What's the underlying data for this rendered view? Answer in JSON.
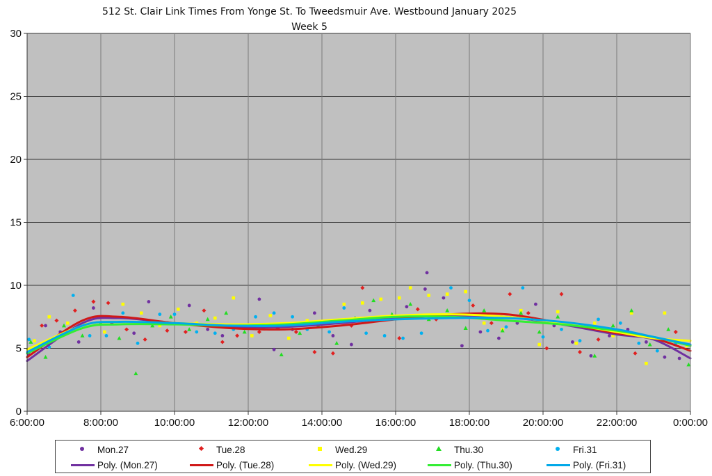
{
  "chart_data": {
    "type": "scatter",
    "title": "512 St. Clair Link Times From Yonge St. To Tweedsmuir Ave. Westbound January 2025",
    "subtitle": "Week 5",
    "ylim": [
      0,
      30
    ],
    "yticks": [
      "0",
      "5",
      "10",
      "15",
      "20",
      "25",
      "30"
    ],
    "xlim": [
      6,
      24
    ],
    "xticks": [
      "6:00:00",
      "8:00:00",
      "10:00:00",
      "12:00:00",
      "14:00:00",
      "16:00:00",
      "18:00:00",
      "20:00:00",
      "22:00:00",
      "0:00:00"
    ],
    "grid": true,
    "plot_background": "#c0c0c0",
    "legend_position": "bottom",
    "series": [
      {
        "name": "Mon.27",
        "marker": "circle",
        "color": "#7030a0",
        "x": [
          6.05,
          6.5,
          6.9,
          7.4,
          7.8,
          8.3,
          8.9,
          9.3,
          9.8,
          10.4,
          10.9,
          11.3,
          11.9,
          12.3,
          12.7,
          13.2,
          13.8,
          14.3,
          14.8,
          15.3,
          15.8,
          16.3,
          16.8,
          16.85,
          17.3,
          17.8,
          18.3,
          18.8,
          19.3,
          19.8,
          20.3,
          20.8,
          21.3,
          21.8,
          22.3,
          22.8,
          23.3,
          23.7
        ],
        "y": [
          4.5,
          6.8,
          6.3,
          5.5,
          8.2,
          7.0,
          6.2,
          8.7,
          7.0,
          8.4,
          6.5,
          6.0,
          6.8,
          8.9,
          4.9,
          6.5,
          7.8,
          6.0,
          5.3,
          8.0,
          7.4,
          8.3,
          9.7,
          11.0,
          9.0,
          5.2,
          6.3,
          5.8,
          7.0,
          8.5,
          6.8,
          5.5,
          4.4,
          6.0,
          6.5,
          5.5,
          4.3,
          4.2
        ],
        "trend": "Poly. (Mon.27)",
        "trend_color": "#7030a0",
        "trend_y": [
          4.0,
          7.0,
          7.4,
          7.0,
          6.7,
          6.7,
          7.0,
          7.4,
          7.6,
          7.5,
          6.9,
          6.1,
          5.7,
          4.2
        ]
      },
      {
        "name": "Tue.28",
        "marker": "diamond",
        "color": "#e02020",
        "x": [
          6.4,
          6.8,
          7.3,
          7.8,
          8.2,
          8.7,
          9.2,
          9.8,
          10.3,
          10.8,
          11.3,
          11.7,
          12.3,
          12.8,
          13.3,
          13.8,
          14.3,
          14.8,
          15.1,
          15.6,
          16.1,
          16.6,
          17.1,
          17.6,
          18.1,
          18.6,
          19.1,
          19.6,
          20.1,
          20.5,
          21.0,
          21.5,
          22.0,
          22.5,
          23.0,
          23.6
        ],
        "y": [
          6.8,
          7.2,
          8.0,
          8.7,
          8.6,
          6.5,
          5.7,
          6.4,
          6.3,
          8.0,
          5.5,
          6.0,
          6.3,
          6.6,
          6.3,
          4.7,
          4.6,
          6.8,
          9.8,
          7.4,
          5.8,
          8.1,
          7.3,
          7.5,
          8.4,
          7.0,
          9.3,
          7.8,
          5.0,
          9.3,
          4.7,
          5.7,
          6.2,
          4.6,
          5.8,
          6.3
        ],
        "trend": "Poly. (Tue.28)",
        "trend_color": "#d01818",
        "trend_y": [
          4.3,
          7.2,
          7.5,
          7.0,
          6.6,
          6.5,
          6.8,
          7.3,
          7.7,
          7.7,
          7.0,
          6.2,
          5.8,
          4.8
        ]
      },
      {
        "name": "Wed.29",
        "marker": "square",
        "color": "#ffff00",
        "x": [
          6.2,
          6.6,
          7.1,
          7.6,
          8.1,
          8.6,
          9.1,
          9.6,
          10.1,
          10.6,
          11.1,
          11.6,
          12.1,
          12.6,
          13.1,
          13.6,
          14.1,
          14.6,
          15.1,
          15.6,
          16.1,
          16.4,
          16.9,
          17.4,
          17.9,
          18.4,
          18.9,
          19.4,
          19.9,
          20.4,
          20.9,
          21.4,
          21.9,
          22.4,
          22.8,
          23.3,
          23.9
        ],
        "y": [
          5.6,
          7.5,
          7.0,
          6.9,
          6.3,
          8.5,
          7.8,
          6.8,
          8.1,
          7.0,
          7.4,
          9.0,
          6.0,
          7.6,
          5.8,
          7.2,
          7.0,
          8.5,
          8.6,
          8.9,
          9.0,
          9.8,
          9.2,
          9.3,
          9.5,
          7.0,
          6.5,
          8.0,
          5.3,
          7.9,
          5.4,
          7.0,
          6.0,
          7.8,
          3.8,
          7.8,
          5.2
        ],
        "trend": "Poly. (Wed.29)",
        "trend_color": "#ffff00",
        "trend_y": [
          4.9,
          6.8,
          7.1,
          7.0,
          6.9,
          7.0,
          7.3,
          7.6,
          7.7,
          7.5,
          7.0,
          6.3,
          5.8,
          5.6
        ]
      },
      {
        "name": "Thu.30",
        "marker": "triangle",
        "color": "#22dd22",
        "x": [
          6.1,
          6.5,
          7.0,
          7.5,
          8.0,
          8.5,
          8.95,
          9.4,
          9.9,
          10.4,
          10.9,
          11.4,
          11.9,
          12.4,
          12.9,
          13.4,
          13.9,
          14.4,
          14.9,
          15.4,
          15.9,
          16.4,
          16.9,
          17.4,
          17.9,
          18.4,
          18.9,
          19.4,
          19.9,
          20.4,
          20.9,
          21.4,
          21.9,
          22.4,
          22.9,
          23.4,
          23.95
        ],
        "y": [
          5.5,
          4.3,
          6.8,
          6.0,
          7.0,
          5.8,
          3.0,
          6.8,
          7.5,
          6.5,
          7.3,
          7.8,
          6.3,
          6.7,
          4.5,
          6.2,
          6.8,
          5.4,
          7.4,
          8.8,
          7.7,
          8.5,
          7.3,
          8.0,
          6.6,
          8.0,
          6.4,
          7.8,
          6.3,
          7.5,
          6.8,
          4.4,
          6.8,
          8.0,
          5.3,
          6.5,
          3.7
        ],
        "trend": "Poly. (Thu.30)",
        "trend_color": "#33ee33",
        "trend_y": [
          4.6,
          6.6,
          6.9,
          6.9,
          6.8,
          6.9,
          7.2,
          7.5,
          7.5,
          7.2,
          6.9,
          6.4,
          5.9,
          5.2
        ]
      },
      {
        "name": "Fri.31",
        "marker": "circle",
        "color": "#00b0f0",
        "x": [
          6.05,
          6.6,
          7.25,
          7.7,
          8.15,
          8.6,
          9.0,
          9.6,
          10.0,
          10.6,
          11.1,
          11.6,
          12.2,
          12.7,
          13.2,
          13.6,
          14.2,
          14.6,
          15.2,
          15.7,
          16.2,
          16.7,
          17.2,
          17.5,
          18.0,
          18.5,
          19.0,
          19.45,
          20.0,
          20.5,
          21.0,
          21.5,
          22.1,
          22.6,
          23.1,
          23.6
        ],
        "y": [
          5.7,
          5.1,
          9.2,
          6.0,
          6.0,
          7.8,
          5.4,
          7.7,
          7.7,
          6.3,
          6.2,
          6.5,
          7.5,
          7.8,
          7.5,
          6.5,
          6.3,
          8.2,
          6.2,
          6.0,
          5.8,
          6.2,
          7.6,
          9.8,
          8.8,
          6.4,
          6.7,
          9.8,
          5.9,
          6.5,
          5.6,
          7.3,
          7.0,
          5.4,
          4.8,
          5.4
        ],
        "trend": "Poly. (Fri.31)",
        "trend_color": "#00a8e8",
        "trend_y": [
          4.7,
          6.8,
          7.1,
          7.0,
          6.8,
          6.8,
          7.1,
          7.3,
          7.4,
          7.4,
          7.1,
          6.5,
          5.9,
          5.3
        ]
      }
    ],
    "trend_x": [
      6,
      7.5,
      8.5,
      10,
      11.5,
      13,
      14.5,
      16,
      17.5,
      19,
      20.5,
      22,
      23,
      24
    ]
  },
  "legend": {
    "markers": [
      "Mon.27",
      "Tue.28",
      "Wed.29",
      "Thu.30",
      "Fri.31"
    ],
    "trends": [
      "Poly. (Mon.27)",
      "Poly. (Tue.28)",
      "Poly. (Wed.29)",
      "Poly. (Thu.30)",
      "Poly. (Fri.31)"
    ]
  }
}
